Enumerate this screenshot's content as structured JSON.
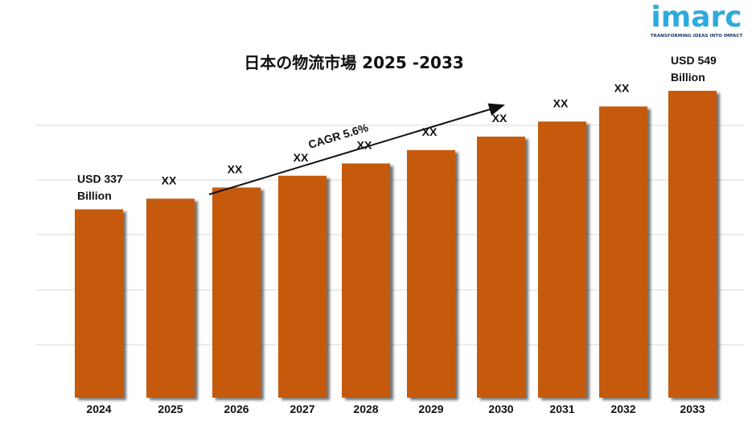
{
  "brand": {
    "name": "imarc",
    "tagline": "TRANSFORMING IDEAS INTO IMPACT",
    "color": "#2eaadc",
    "tagline_color": "#1e3a6b"
  },
  "chart_data": {
    "type": "bar",
    "title": "日本の物流市場 2025 -2033",
    "categories": [
      "2024",
      "2025",
      "2026",
      "2027",
      "2028",
      "2029",
      "2030",
      "2031",
      "2032",
      "2033"
    ],
    "values": [
      337,
      356,
      376,
      397,
      419,
      443,
      467,
      494,
      521,
      549
    ],
    "data_labels": [
      "USD 337 Billion",
      "XX",
      "XX",
      "XX",
      "XX",
      "XX",
      "XX",
      "XX",
      "XX",
      "USD 549 Billion"
    ],
    "annotation": "CAGR 5.6%",
    "bar_color": "#c55a11",
    "grid": true,
    "xlabel": "",
    "ylabel": ""
  }
}
